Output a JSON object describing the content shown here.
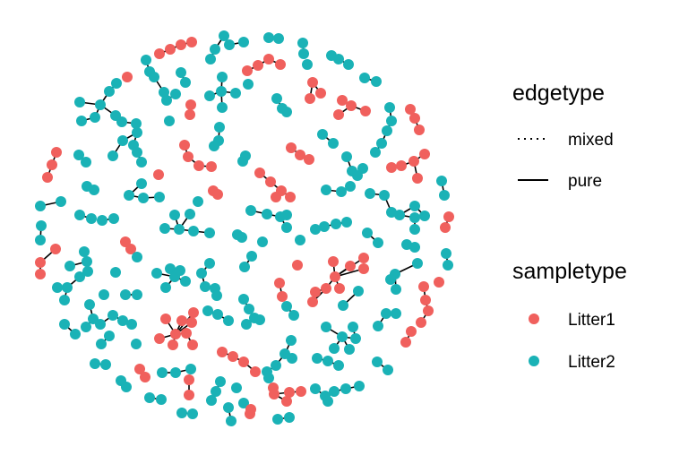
{
  "legend": {
    "edgetype": {
      "title": "edgetype",
      "items": [
        {
          "label": "mixed",
          "style": "dotted"
        },
        {
          "label": "pure",
          "style": "solid"
        }
      ]
    },
    "sampletype": {
      "title": "sampletype",
      "items": [
        {
          "label": "Litter1",
          "color": "#F0605D"
        },
        {
          "label": "Litter2",
          "color": "#1AB2B6"
        }
      ]
    }
  },
  "colors": {
    "Litter1": "#F0605D",
    "Litter2": "#1AB2B6",
    "edge": "#000000"
  }
}
